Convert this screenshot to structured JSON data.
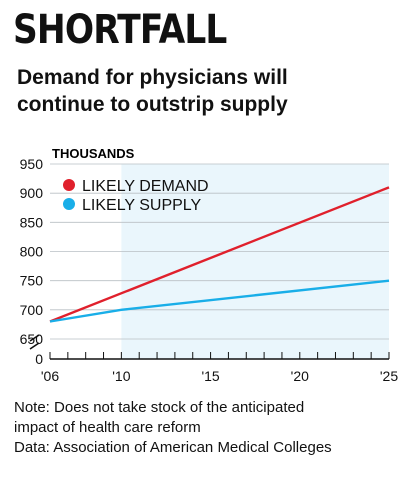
{
  "header": {
    "title": "SHORTFALL",
    "subtitle_lines": [
      "Demand for physicians will",
      "continue to outstrip supply"
    ]
  },
  "chart_data": {
    "type": "line",
    "ylabel": "THOUSANDS",
    "xlim": [
      2006,
      2025
    ],
    "ylim": [
      650,
      950
    ],
    "axis_break": true,
    "y_ticks": [
      "950",
      "900",
      "850",
      "800",
      "750",
      "700",
      "650",
      "0"
    ],
    "x_ticks": [
      "'06",
      "'10",
      "'15",
      "'20",
      "'25"
    ],
    "shaded_span": [
      2010,
      2025
    ],
    "legend_placement": "top-left",
    "series": [
      {
        "name": "LIKELY DEMAND",
        "color": "#e0202c",
        "x": [
          2006,
          2025
        ],
        "y": [
          680,
          910
        ]
      },
      {
        "name": "LIKELY SUPPLY",
        "color": "#19aee8",
        "x": [
          2006,
          2010,
          2025
        ],
        "y": [
          680,
          700,
          750
        ]
      }
    ]
  },
  "notes": {
    "note_lines": [
      "Note: Does not take stock of the anticipated",
      "impact of health care reform"
    ],
    "source": "Data: Association of American Medical Colleges"
  }
}
